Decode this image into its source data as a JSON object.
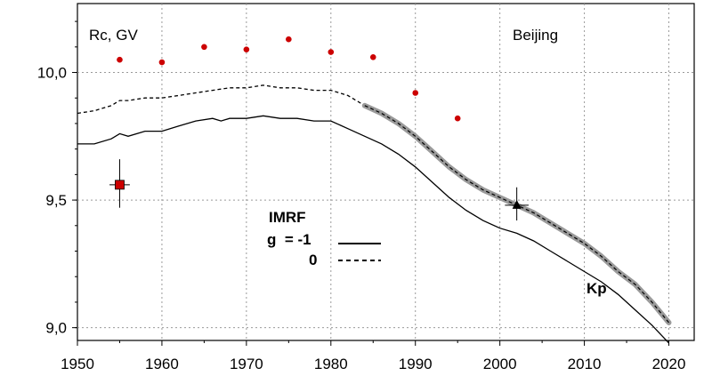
{
  "chart_data": {
    "type": "line",
    "title": "",
    "corner_label": "Rc, GV",
    "location_label": "Beijing",
    "xlim": [
      1950,
      2023
    ],
    "ylim": [
      8.95,
      10.27
    ],
    "x_ticks": [
      1950,
      1960,
      1970,
      1980,
      1990,
      2000,
      2010,
      2020
    ],
    "x_tick_labels": [
      "1950",
      "1960",
      "1970",
      "1980",
      "1990",
      "2000",
      "2010",
      "2020"
    ],
    "y_ticks": [
      9.0,
      9.5,
      10.0
    ],
    "y_tick_labels": [
      "9,0",
      "9,5",
      "10,0"
    ],
    "grid": true,
    "legend": {
      "title": "IMRF",
      "entries": [
        {
          "label": "g  = -1",
          "style": "solid"
        },
        {
          "label": "0",
          "style": "dashed"
        }
      ]
    },
    "series": [
      {
        "style": "solid",
        "color": "#000000",
        "points": [
          [
            1950,
            9.72
          ],
          [
            1952,
            9.72
          ],
          [
            1954,
            9.74
          ],
          [
            1955,
            9.76
          ],
          [
            1956,
            9.75
          ],
          [
            1958,
            9.77
          ],
          [
            1960,
            9.77
          ],
          [
            1962,
            9.79
          ],
          [
            1964,
            9.81
          ],
          [
            1966,
            9.82
          ],
          [
            1967,
            9.81
          ],
          [
            1968,
            9.82
          ],
          [
            1970,
            9.82
          ],
          [
            1972,
            9.83
          ],
          [
            1974,
            9.82
          ],
          [
            1976,
            9.82
          ],
          [
            1978,
            9.81
          ],
          [
            1980,
            9.81
          ],
          [
            1982,
            9.78
          ],
          [
            1984,
            9.75
          ],
          [
            1986,
            9.72
          ],
          [
            1988,
            9.68
          ],
          [
            1990,
            9.63
          ],
          [
            1992,
            9.57
          ],
          [
            1994,
            9.51
          ],
          [
            1996,
            9.46
          ],
          [
            1998,
            9.42
          ],
          [
            2000,
            9.39
          ],
          [
            2002,
            9.37
          ],
          [
            2004,
            9.34
          ],
          [
            2006,
            9.3
          ],
          [
            2008,
            9.26
          ],
          [
            2010,
            9.22
          ],
          [
            2012,
            9.18
          ],
          [
            2014,
            9.13
          ],
          [
            2016,
            9.07
          ],
          [
            2018,
            9.01
          ],
          [
            2020,
            8.94
          ]
        ]
      },
      {
        "style": "dashed",
        "color": "#000000",
        "points": [
          [
            1950,
            9.84
          ],
          [
            1952,
            9.85
          ],
          [
            1954,
            9.87
          ],
          [
            1955,
            9.89
          ],
          [
            1956,
            9.89
          ],
          [
            1958,
            9.9
          ],
          [
            1960,
            9.9
          ],
          [
            1962,
            9.91
          ],
          [
            1964,
            9.92
          ],
          [
            1966,
            9.93
          ],
          [
            1968,
            9.94
          ],
          [
            1970,
            9.94
          ],
          [
            1972,
            9.95
          ],
          [
            1974,
            9.94
          ],
          [
            1976,
            9.94
          ],
          [
            1978,
            9.93
          ],
          [
            1980,
            9.93
          ],
          [
            1982,
            9.91
          ],
          [
            1984,
            9.87
          ]
        ]
      },
      {
        "style": "thick-gray-dashed",
        "color": "#9a9a9a",
        "points": [
          [
            1984,
            9.87
          ],
          [
            1986,
            9.84
          ],
          [
            1988,
            9.8
          ],
          [
            1990,
            9.75
          ],
          [
            1992,
            9.69
          ],
          [
            1994,
            9.63
          ],
          [
            1996,
            9.58
          ],
          [
            1998,
            9.54
          ],
          [
            2000,
            9.51
          ],
          [
            2002,
            9.48
          ],
          [
            2004,
            9.45
          ],
          [
            2006,
            9.41
          ],
          [
            2008,
            9.37
          ],
          [
            2010,
            9.33
          ],
          [
            2012,
            9.28
          ],
          [
            2014,
            9.22
          ],
          [
            2016,
            9.17
          ],
          [
            2018,
            9.1
          ],
          [
            2020,
            9.02
          ]
        ]
      }
    ],
    "scatter_points": {
      "color": "#cc0000",
      "points": [
        [
          1955,
          10.05
        ],
        [
          1960,
          10.04
        ],
        [
          1965,
          10.1
        ],
        [
          1970,
          10.09
        ],
        [
          1975,
          10.13
        ],
        [
          1980,
          10.08
        ],
        [
          1985,
          10.06
        ],
        [
          1990,
          9.92
        ],
        [
          1995,
          9.82
        ]
      ]
    },
    "square_marker": {
      "x": 1955,
      "y": 9.56,
      "y_err": [
        9.47,
        9.66
      ],
      "x_err": [
        1953.8,
        1956.2
      ],
      "color": "#cc0000"
    },
    "triangle_marker": {
      "x": 2002,
      "y": 9.48,
      "y_err": [
        9.42,
        9.55
      ],
      "x_err": [
        2000.6,
        2003.4
      ],
      "color": "#000000"
    },
    "annotations": [
      {
        "text": "Kp",
        "x": 2011,
        "y": 9.11
      }
    ]
  }
}
